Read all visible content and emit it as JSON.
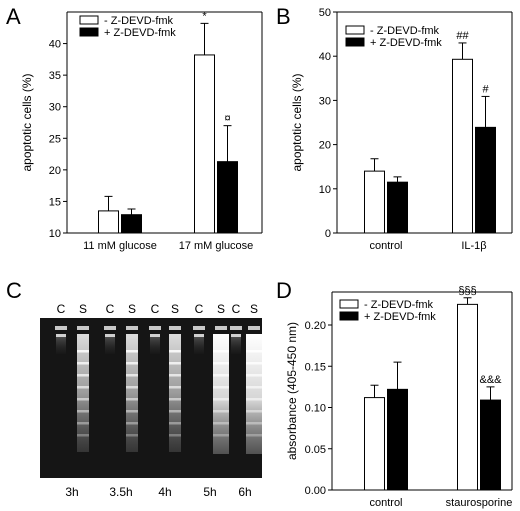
{
  "panel_letters": [
    "A",
    "B",
    "C",
    "D"
  ],
  "chart_data": [
    {
      "panel": "A",
      "type": "bar",
      "ylabel": "apoptotic cells (%)",
      "xlabel": "",
      "ylim": [
        0,
        45
      ],
      "yticks": [
        10,
        15,
        20,
        25,
        30,
        35,
        40
      ],
      "categories": [
        "11 mM glucose",
        "17 mM glucose"
      ],
      "legend_position": "top-left",
      "series": [
        {
          "name": "- Z-DEVD-fmk",
          "color": "#ffffff",
          "values": [
            13.5,
            38.2
          ],
          "errors": [
            2.3,
            5.0
          ]
        },
        {
          "name": "+ Z-DEVD-fmk",
          "color": "#000000",
          "values": [
            12.9,
            21.3
          ],
          "errors": [
            0.9,
            5.7
          ]
        }
      ],
      "annotations": [
        {
          "series": 0,
          "category": 1,
          "text": "*"
        },
        {
          "series": 1,
          "category": 1,
          "text": "¤"
        }
      ]
    },
    {
      "panel": "B",
      "type": "bar",
      "ylabel": "apoptotic cells (%)",
      "xlabel": "",
      "ylim": [
        0,
        50
      ],
      "yticks": [
        0,
        10,
        20,
        30,
        40,
        50
      ],
      "categories": [
        "control",
        "IL-1β"
      ],
      "legend_position": "top-left",
      "series": [
        {
          "name": "- Z-DEVD-fmk",
          "color": "#ffffff",
          "values": [
            14.0,
            39.3
          ],
          "errors": [
            2.8,
            3.7
          ]
        },
        {
          "name": "+ Z-DEVD-fmk",
          "color": "#000000",
          "values": [
            11.5,
            23.9
          ],
          "errors": [
            1.2,
            7.0
          ]
        }
      ],
      "annotations": [
        {
          "series": 0,
          "category": 1,
          "text": "##"
        },
        {
          "series": 1,
          "category": 1,
          "text": "#"
        }
      ]
    },
    {
      "panel": "D",
      "type": "bar",
      "ylabel": "absorbance (405-450 nm)",
      "xlabel": "",
      "ylim": [
        0,
        0.24
      ],
      "yticks": [
        0,
        0.05,
        0.1,
        0.15,
        0.2
      ],
      "ytick_labels": [
        "0.00",
        "0.05",
        "0.10",
        "0.15",
        "0.20"
      ],
      "categories": [
        "control",
        "staurosporine"
      ],
      "legend_position": "top-left",
      "series": [
        {
          "name": "- Z-DEVD-fmk",
          "color": "#ffffff",
          "values": [
            0.112,
            0.225
          ],
          "errors": [
            0.015,
            0.008
          ]
        },
        {
          "name": "+ Z-DEVD-fmk",
          "color": "#000000",
          "values": [
            0.122,
            0.109
          ],
          "errors": [
            0.033,
            0.016
          ]
        }
      ],
      "annotations": [
        {
          "series": 0,
          "category": 1,
          "text": "§§§"
        },
        {
          "series": 1,
          "category": 1,
          "text": "&&&"
        }
      ]
    }
  ],
  "gel": {
    "panel": "C",
    "lane_labels": [
      "C",
      "S",
      "C",
      "S",
      "C",
      "S",
      "C",
      "S",
      "C",
      "S"
    ],
    "time_labels": [
      "3h",
      "3.5h",
      "4h",
      "5h",
      "6h"
    ]
  }
}
